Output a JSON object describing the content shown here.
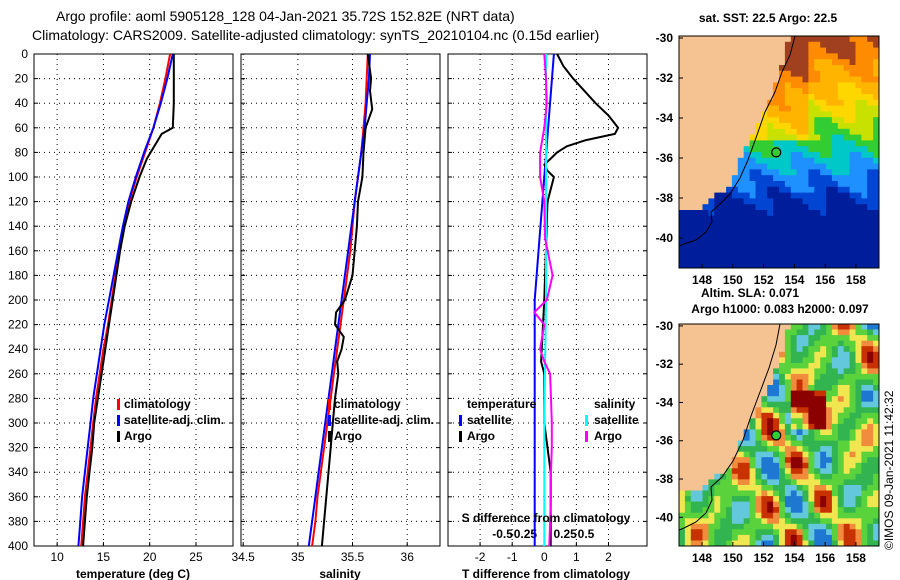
{
  "header": {
    "title_line1": "Argo profile: aoml 5905128_128 04-Jan-2021 35.72S 152.82E (NRT data)",
    "title_line2": "Climatology: CARS2009. Satellite-adjusted climatology: synTS_20210104.nc (0.15d earlier)"
  },
  "colors": {
    "climatology": "#ff0000",
    "satellite": "#0000ff",
    "argo": "#000000",
    "sal_climatology": "#ff00ff",
    "sal_satellite": "#00ffff",
    "land": "#f5c391"
  },
  "credit": "©IMOS 09-Jan-2021 11:42:32",
  "chart_data": [
    {
      "type": "line",
      "title": "",
      "xlabel": "temperature (deg C)",
      "ylabel": "",
      "xlim": [
        7.5,
        29
      ],
      "ylim": [
        400,
        0
      ],
      "xticks": [
        10,
        15,
        20,
        25
      ],
      "yticks": [
        0,
        20,
        40,
        60,
        80,
        100,
        120,
        140,
        160,
        180,
        200,
        220,
        240,
        260,
        280,
        300,
        320,
        340,
        360,
        380,
        400
      ],
      "legend": [
        "climatology",
        "satellite-adj. clim.",
        "Argo"
      ],
      "series": [
        {
          "name": "climatology",
          "color": "red",
          "depth": [
            0,
            20,
            40,
            60,
            80,
            100,
            120,
            140,
            160,
            180,
            200,
            220,
            240,
            260,
            280,
            300,
            320,
            340,
            360,
            380,
            400
          ],
          "values": [
            22.2,
            21.7,
            21.1,
            20.4,
            19.5,
            18.6,
            17.8,
            17.2,
            16.7,
            16.3,
            15.9,
            15.5,
            15.0,
            14.6,
            14.2,
            13.9,
            13.6,
            13.3,
            13.0,
            12.8,
            12.6
          ]
        },
        {
          "name": "satellite-adj. clim.",
          "color": "blue",
          "depth": [
            0,
            20,
            40,
            60,
            80,
            100,
            120,
            140,
            160,
            180,
            200,
            220,
            240,
            260,
            280,
            300,
            320,
            340,
            360,
            380,
            400
          ],
          "values": [
            22.5,
            21.9,
            21.2,
            20.4,
            19.4,
            18.5,
            17.7,
            17.1,
            16.6,
            16.1,
            15.6,
            15.1,
            14.7,
            14.3,
            13.9,
            13.6,
            13.3,
            13.0,
            12.7,
            12.5,
            12.3
          ]
        },
        {
          "name": "Argo",
          "color": "black",
          "depth": [
            0,
            20,
            40,
            60,
            65,
            75,
            85,
            100,
            120,
            140,
            160,
            180,
            200,
            220,
            240,
            260,
            280,
            300,
            320,
            340,
            360,
            380,
            400
          ],
          "values": [
            22.6,
            22.6,
            22.6,
            22.5,
            21.3,
            20.5,
            19.7,
            18.9,
            18.0,
            17.3,
            16.8,
            16.4,
            16.0,
            15.6,
            15.2,
            14.8,
            14.4,
            14.0,
            13.8,
            13.5,
            13.2,
            13.0,
            12.8
          ]
        }
      ]
    },
    {
      "type": "line",
      "title": "",
      "xlabel": "salinity",
      "ylabel": "",
      "xlim": [
        34.48,
        36.3
      ],
      "ylim": [
        400,
        0
      ],
      "xticks": [
        34.5,
        35,
        35.5,
        36
      ],
      "legend": [
        "climatology",
        "satellite-adj. clim.",
        "Argo"
      ],
      "series": [
        {
          "name": "climatology",
          "color": "red",
          "depth": [
            0,
            20,
            40,
            60,
            80,
            100,
            120,
            140,
            160,
            180,
            200,
            220,
            240,
            260,
            280,
            300,
            320,
            340,
            360,
            380,
            400
          ],
          "values": [
            35.64,
            35.63,
            35.62,
            35.6,
            35.58,
            35.55,
            35.52,
            35.5,
            35.48,
            35.45,
            35.42,
            35.39,
            35.36,
            35.33,
            35.3,
            35.27,
            35.24,
            35.21,
            35.18,
            35.16,
            35.13
          ]
        },
        {
          "name": "satellite-adj. clim.",
          "color": "blue",
          "depth": [
            0,
            20,
            40,
            60,
            80,
            100,
            120,
            140,
            160,
            180,
            200,
            220,
            240,
            260,
            280,
            300,
            320,
            340,
            360,
            380,
            400
          ],
          "values": [
            35.66,
            35.65,
            35.63,
            35.61,
            35.58,
            35.55,
            35.52,
            35.49,
            35.46,
            35.43,
            35.4,
            35.37,
            35.34,
            35.31,
            35.28,
            35.25,
            35.22,
            35.19,
            35.16,
            35.13,
            35.1
          ]
        },
        {
          "name": "Argo",
          "color": "black",
          "depth": [
            0,
            20,
            30,
            45,
            60,
            80,
            100,
            120,
            140,
            160,
            180,
            200,
            210,
            220,
            230,
            240,
            250,
            260,
            280,
            300,
            320,
            340,
            360,
            380,
            400
          ],
          "values": [
            35.64,
            35.67,
            35.66,
            35.68,
            35.62,
            35.6,
            35.59,
            35.55,
            35.54,
            35.52,
            35.5,
            35.43,
            35.35,
            35.34,
            35.42,
            35.4,
            35.36,
            35.37,
            35.34,
            35.32,
            35.3,
            35.28,
            35.26,
            35.24,
            35.22
          ]
        }
      ]
    },
    {
      "type": "line",
      "title": "",
      "xlabel": "T difference from climatology",
      "xlabel_top": "S difference from climatology",
      "ylabel": "",
      "xlim": [
        -3,
        3.2
      ],
      "ylim": [
        400,
        0
      ],
      "xticks": [
        -2,
        -1,
        0,
        1,
        2
      ],
      "xticks_top": [
        -0.5,
        -0.25,
        0,
        0.25,
        0.5
      ],
      "legend_temperature_title": "temperature",
      "legend_salinity_title": "salinity",
      "legend_temperature": [
        "satellite",
        "Argo"
      ],
      "legend_salinity": [
        "satellite",
        "Argo"
      ],
      "series": [
        {
          "name": "temperature satellite",
          "color": "blue",
          "depth": [
            0,
            100,
            200,
            300,
            400
          ],
          "values": [
            0.3,
            0.0,
            -0.3,
            -0.3,
            -0.3
          ]
        },
        {
          "name": "temperature Argo",
          "color": "black",
          "depth": [
            0,
            10,
            20,
            40,
            50,
            60,
            65,
            70,
            75,
            80,
            85,
            90,
            95,
            100,
            120,
            200,
            250,
            260,
            280,
            300,
            320,
            340,
            360,
            380,
            400
          ],
          "values": [
            0.4,
            0.6,
            0.9,
            1.6,
            2.0,
            2.3,
            2.2,
            1.3,
            0.7,
            0.4,
            0.2,
            0.0,
            0.1,
            0.3,
            0.1,
            0.0,
            -0.1,
            0.0,
            0.0,
            0.0,
            0.1,
            0.2,
            0.2,
            0.2,
            0.2
          ]
        },
        {
          "name": "salinity satellite",
          "color": "cyan",
          "depth": [
            0,
            100,
            200,
            300,
            400
          ],
          "values": [
            0.02,
            0.02,
            0.02,
            0.0,
            0.0
          ]
        },
        {
          "name": "salinity Argo",
          "color": "magenta",
          "depth": [
            0,
            20,
            40,
            60,
            80,
            100,
            120,
            150,
            180,
            200,
            210,
            220,
            240,
            250,
            260,
            280,
            300,
            320,
            340,
            360,
            380,
            400
          ],
          "values": [
            0.0,
            0.02,
            0.03,
            0.0,
            -0.05,
            -0.05,
            0.0,
            0.01,
            0.1,
            0.03,
            -0.12,
            0.0,
            -0.05,
            0.0,
            0.07,
            0.08,
            0.09,
            0.09,
            0.08,
            0.08,
            0.07,
            0.06
          ]
        }
      ]
    },
    {
      "type": "heatmap",
      "title": "sat. SST: 22.5 Argo: 22.5",
      "xticks": [
        148,
        150,
        152,
        154,
        156,
        158
      ],
      "yticks": [
        -30,
        -32,
        -34,
        -36,
        -38,
        -40
      ],
      "xlim": [
        146.5,
        159.5
      ],
      "ylim": [
        -41.5,
        -29.9
      ],
      "marker": {
        "lon": 152.82,
        "lat": -35.72
      }
    },
    {
      "type": "heatmap",
      "title": "Altim. SLA: 0.071",
      "subtitle": "Argo h1000: 0.083 h2000: 0.097",
      "xticks": [
        148,
        150,
        152,
        154,
        156,
        158
      ],
      "yticks": [
        -30,
        -32,
        -34,
        -36,
        -38,
        -40
      ],
      "xlim": [
        146.5,
        159.5
      ],
      "ylim": [
        -41.5,
        -29.9
      ],
      "marker": {
        "lon": 152.82,
        "lat": -35.72
      }
    }
  ]
}
